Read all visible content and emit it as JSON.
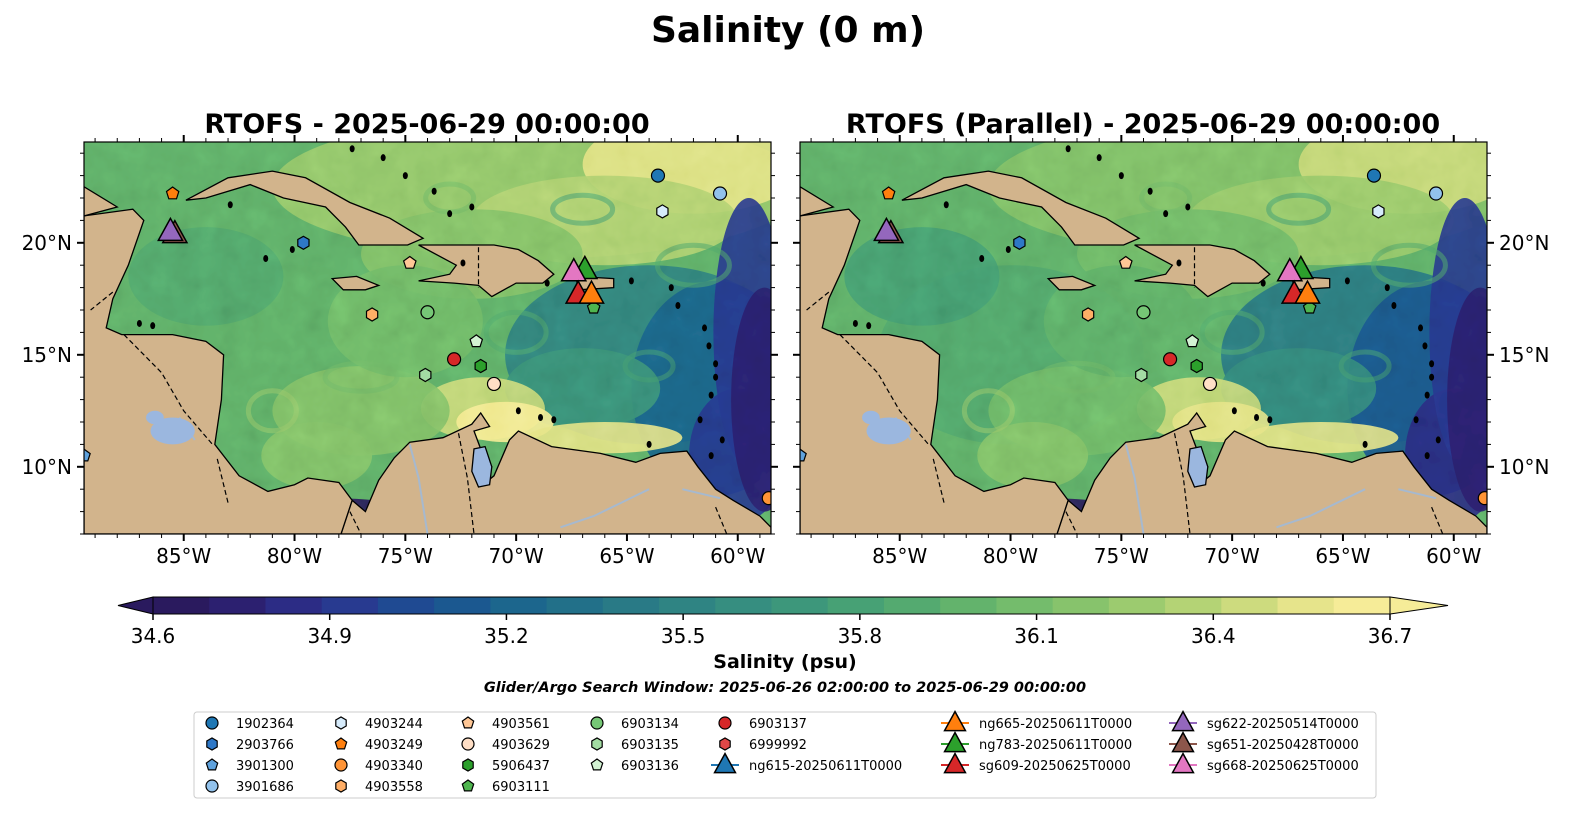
{
  "figure": {
    "suptitle": "Salinity (0 m)",
    "search_window": "Glider/Argo Search Window: 2025-06-26 02:00:00 to 2025-06-29 00:00:00"
  },
  "panels": [
    {
      "id": "left",
      "title": "RTOFS - 2025-06-29 00:00:00"
    },
    {
      "id": "right",
      "title": "RTOFS (Parallel) - 2025-06-29 00:00:00"
    }
  ],
  "map_axes": {
    "lon_ticks": [
      -85,
      -80,
      -75,
      -70,
      -65,
      -60
    ],
    "lon_labels": [
      "85°W",
      "80°W",
      "75°W",
      "70°W",
      "65°W",
      "60°W"
    ],
    "lat_ticks": [
      10,
      15,
      20
    ],
    "lat_labels": [
      "10°N",
      "15°N",
      "20°N"
    ],
    "lon_range": [
      -89.5,
      -58.5
    ],
    "lat_range": [
      7.0,
      24.5
    ]
  },
  "colorbar": {
    "label": "Salinity (psu)",
    "min": 34.6,
    "max": 36.7,
    "ticks": [
      "34.6",
      "34.9",
      "35.2",
      "35.5",
      "35.8",
      "36.1",
      "36.4",
      "36.7"
    ],
    "colors": [
      "#2a1a5e",
      "#2c2070",
      "#2c2c85",
      "#283a90",
      "#1f4a92",
      "#1b5890",
      "#1c668d",
      "#227089",
      "#297a86",
      "#2f8483",
      "#368e80",
      "#3d977b",
      "#47a175",
      "#54aa70",
      "#63b36c",
      "#74bc6c",
      "#87c36c",
      "#9ccb6f",
      "#b4d375",
      "#cddb7e",
      "#e6e48b",
      "#f6ec98"
    ]
  },
  "colors": {
    "land": "#d2b48c",
    "lake": "#9bb7df",
    "river": "#a6b9cf"
  },
  "legend": [
    {
      "id": "1902364",
      "marker": "circle",
      "color": "#1f77b4"
    },
    {
      "id": "2903766",
      "marker": "hexagon",
      "color": "#2e78c7"
    },
    {
      "id": "3901300",
      "marker": "pentagon",
      "color": "#5fa2dd"
    },
    {
      "id": "3901686",
      "marker": "circle",
      "color": "#92c2ec"
    },
    {
      "id": "4903244",
      "marker": "hexagon",
      "color": "#d6ebfb"
    },
    {
      "id": "4903249",
      "marker": "pentagon",
      "color": "#ff7f0e"
    },
    {
      "id": "4903340",
      "marker": "circle",
      "color": "#ff9436"
    },
    {
      "id": "4903558",
      "marker": "hexagon",
      "color": "#ffae66"
    },
    {
      "id": "4903561",
      "marker": "pentagon",
      "color": "#ffc796"
    },
    {
      "id": "4903629",
      "marker": "circle",
      "color": "#ffdfc6"
    },
    {
      "id": "5906437",
      "marker": "hexagon",
      "color": "#2ca02c"
    },
    {
      "id": "6903111",
      "marker": "pentagon",
      "color": "#4fb64f"
    },
    {
      "id": "6903134",
      "marker": "circle",
      "color": "#76c776"
    },
    {
      "id": "6903135",
      "marker": "hexagon",
      "color": "#a3dca3"
    },
    {
      "id": "6903136",
      "marker": "pentagon",
      "color": "#d3f2d3"
    },
    {
      "id": "6903137",
      "marker": "circle",
      "color": "#d62728"
    },
    {
      "id": "6999992",
      "marker": "hexagon",
      "color": "#e04747"
    },
    {
      "id": "ng615-20250611T0000",
      "marker": "triangle",
      "color": "#1f77b4"
    },
    {
      "id": "ng665-20250611T0000",
      "marker": "triangle",
      "color": "#ff7f0e"
    },
    {
      "id": "ng783-20250611T0000",
      "marker": "triangle",
      "color": "#2ca02c"
    },
    {
      "id": "sg609-20250625T0000",
      "marker": "triangle",
      "color": "#d62728"
    },
    {
      "id": "sg622-20250514T0000",
      "marker": "triangle",
      "color": "#9467bd"
    },
    {
      "id": "sg651-20250428T0000",
      "marker": "triangle",
      "color": "#8c564b"
    },
    {
      "id": "sg668-20250625T0000",
      "marker": "triangle",
      "color": "#e377c2"
    }
  ],
  "observations": [
    {
      "id": "1902364",
      "lon": -63.6,
      "lat": 23.0
    },
    {
      "id": "3901686",
      "lon": -60.8,
      "lat": 22.2
    },
    {
      "id": "4903244",
      "lon": -63.4,
      "lat": 21.4
    },
    {
      "id": "4903249",
      "lon": -85.5,
      "lat": 22.2
    },
    {
      "id": "2903766",
      "lon": -79.6,
      "lat": 20.0
    },
    {
      "id": "4903561",
      "lon": -74.8,
      "lat": 19.1
    },
    {
      "id": "4903558",
      "lon": -76.5,
      "lat": 16.8
    },
    {
      "id": "6903134",
      "lon": -74.0,
      "lat": 16.9
    },
    {
      "id": "6903136",
      "lon": -71.8,
      "lat": 15.6
    },
    {
      "id": "5906437",
      "lon": -71.6,
      "lat": 14.5
    },
    {
      "id": "6903137",
      "lon": -72.8,
      "lat": 14.8
    },
    {
      "id": "4903629",
      "lon": -71.0,
      "lat": 13.7
    },
    {
      "id": "6903135",
      "lon": -74.1,
      "lat": 14.1
    },
    {
      "id": "6903111",
      "lon": -66.5,
      "lat": 17.1
    },
    {
      "id": "3901300",
      "lon": -89.5,
      "lat": 10.5
    },
    {
      "id": "4903340",
      "lon": -58.6,
      "lat": 8.6
    },
    {
      "id": "sg651-20250428T0000",
      "lon": -85.4,
      "lat": 20.4
    },
    {
      "id": "sg622-20250514T0000",
      "lon": -85.6,
      "lat": 20.5
    },
    {
      "id": "ng783-20250611T0000",
      "lon": -66.9,
      "lat": 18.8
    },
    {
      "id": "sg668-20250625T0000",
      "lon": -67.4,
      "lat": 18.7
    },
    {
      "id": "sg609-20250625T0000",
      "lon": -67.2,
      "lat": 17.7
    },
    {
      "id": "ng665-20250611T0000",
      "lon": -66.6,
      "lat": 17.7
    }
  ]
}
